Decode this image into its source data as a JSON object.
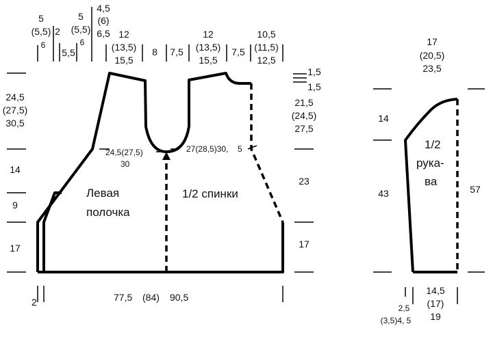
{
  "front": {
    "title_1": "Левая",
    "title_2": "полочка"
  },
  "back": {
    "title": "1/2 спинки"
  },
  "sleeve": {
    "title_1": "1/2",
    "title_2": "рука-",
    "title_3": "ва"
  },
  "top": {
    "a1": "5",
    "a2": "(5,5)",
    "a3": "6",
    "b": "2",
    "c": "5,5",
    "d1": "5",
    "d2": "(5,5)",
    "d3": "6",
    "e1": "4,5",
    "e2": "(6)",
    "e3": "6,5",
    "f1": "12",
    "f2": "(13,5)",
    "f3": "15,5",
    "g": "8",
    "h": "7,5",
    "i1": "12",
    "i2": "(13,5)",
    "i3": "15,5",
    "j": "7,5",
    "k1": "10,5",
    "k2": "(11,5)",
    "k3": "12,5"
  },
  "left": {
    "h1": "24,5",
    "h2": "(27,5)",
    "h3": "30,5",
    "h4": "14",
    "h5": "9",
    "h6": "17"
  },
  "right": {
    "s1": "1,5",
    "s2": "1,5",
    "r1": "21,5",
    "r2": "(24,5)",
    "r3": "27,5",
    "r4": "23",
    "r5": "17"
  },
  "middle": {
    "m1": "24,5(27,5)",
    "m2": "30",
    "m3": "27(28,5)30,",
    "m4": "5"
  },
  "bottom": {
    "b1": "2",
    "b2": "77,5",
    "b3": "(84)",
    "b4": "90,5"
  },
  "sleeve_dims": {
    "t1": "17",
    "t2": "(20,5)",
    "t3": "23,5",
    "l1": "14",
    "l2": "43",
    "r1": "57",
    "b1": "14,5",
    "b2": "(17)",
    "b3": "19",
    "c1": "2,5",
    "c2": "(3,5)4, 5"
  }
}
